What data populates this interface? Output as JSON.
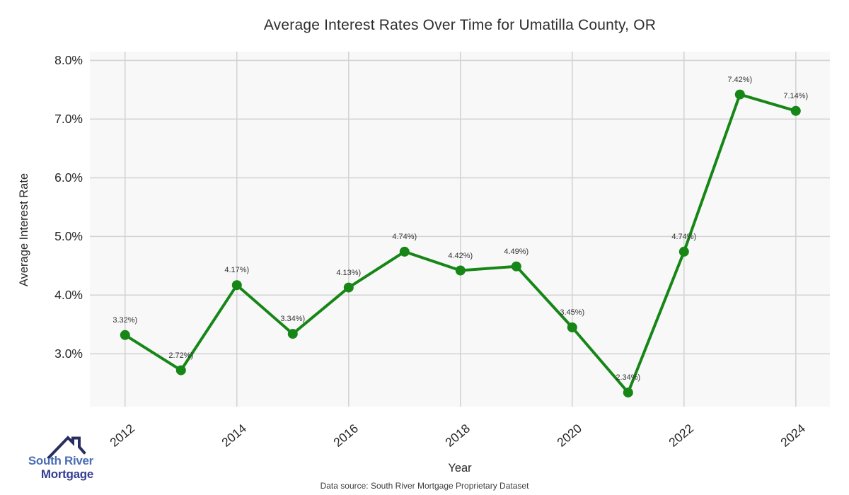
{
  "page": {
    "source_text": "Data source: South River Mortgage Proprietary Dataset"
  },
  "logo": {
    "line1": "South River",
    "line2": "Mortgage",
    "line1_color": "#4a6db6",
    "line2_color": "#333e92",
    "roof_color": "#272f60"
  },
  "chart_data": {
    "type": "line",
    "title": "Average Interest Rates Over Time for Umatilla County, OR",
    "xlabel": "Year",
    "ylabel": "Average Interest Rate",
    "x": [
      2012,
      2013,
      2014,
      2015,
      2016,
      2017,
      2018,
      2019,
      2020,
      2021,
      2022,
      2023,
      2024
    ],
    "values": [
      3.32,
      2.72,
      4.17,
      3.34,
      4.13,
      4.74,
      4.42,
      4.49,
      3.45,
      2.34,
      4.74,
      7.42,
      7.14
    ],
    "point_labels": [
      "3.32%)",
      "2.72%)",
      "4.17%)",
      "3.34%)",
      "4.13%)",
      "4.74%)",
      "4.42%)",
      "4.49%)",
      "3.45%)",
      "2.34%)",
      "4.74%)",
      "7.42%)",
      "7.14%)"
    ],
    "xticks": [
      {
        "value": 2012,
        "label": "2012"
      },
      {
        "value": 2014,
        "label": "2014"
      },
      {
        "value": 2016,
        "label": "2016"
      },
      {
        "value": 2018,
        "label": "2018"
      },
      {
        "value": 2020,
        "label": "2020"
      },
      {
        "value": 2022,
        "label": "2022"
      },
      {
        "value": 2024,
        "label": "2024"
      }
    ],
    "yticks": [
      {
        "value": 3.0,
        "label": "3.0%"
      },
      {
        "value": 4.0,
        "label": "4.0%"
      },
      {
        "value": 5.0,
        "label": "5.0%"
      },
      {
        "value": 6.0,
        "label": "6.0%"
      },
      {
        "value": 7.0,
        "label": "7.0%"
      },
      {
        "value": 8.0,
        "label": "8.0%"
      }
    ],
    "xlim": [
      2011.37,
      2024.61
    ],
    "ylim": [
      2.1,
      8.15
    ],
    "grid": true,
    "legend": "none",
    "colors": {
      "line": "#168616",
      "marker": "#168616",
      "plot_bg": "#f8f8f8",
      "grid": "#d4d4d4",
      "tick_text": "#262626",
      "point_label_text": "#333333"
    }
  }
}
